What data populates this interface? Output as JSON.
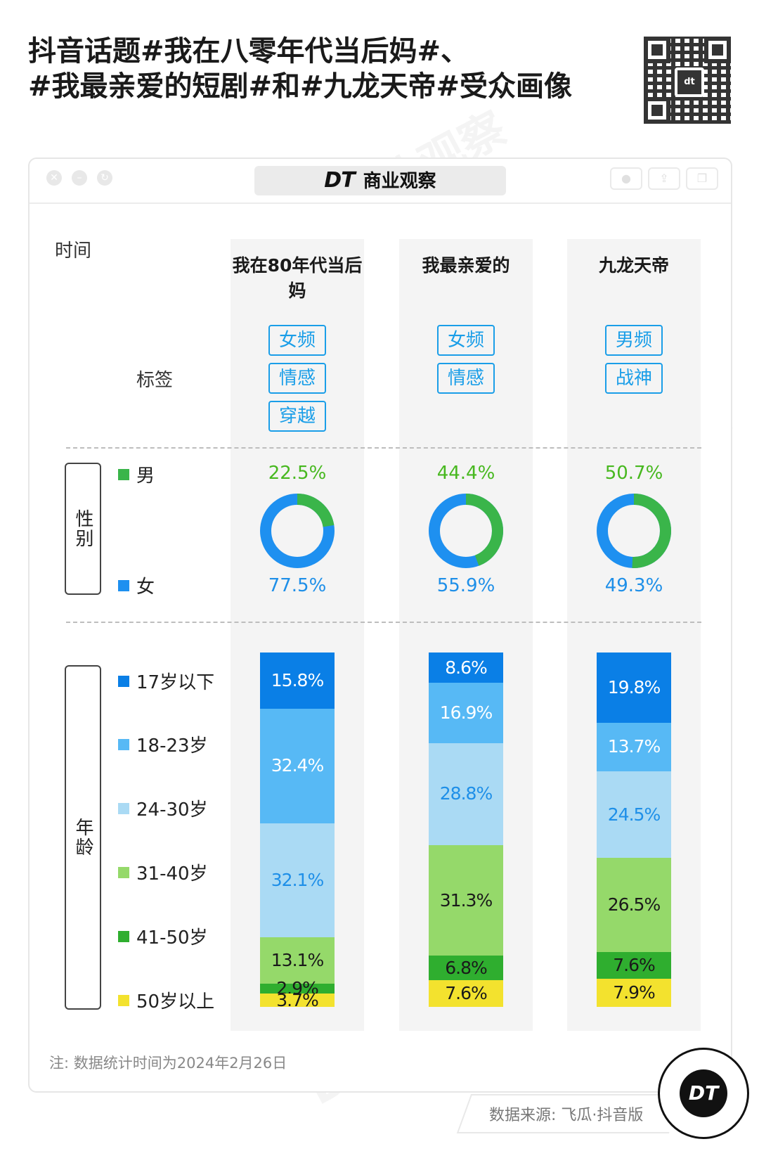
{
  "headline": {
    "line1": "抖音话题#我在八零年代当后妈#、",
    "line2": "#我最亲爱的短剧#和#九龙天帝#受众画像"
  },
  "window": {
    "brand": "DT",
    "title": "商业观察"
  },
  "labels": {
    "time": "时间",
    "tags": "标签",
    "gender": "性别",
    "age": "年龄"
  },
  "legend": {
    "gender": [
      {
        "name": "男",
        "color": "#3ab54a"
      },
      {
        "name": "女",
        "color": "#1e90f0"
      }
    ],
    "age": [
      {
        "name": "17岁以下",
        "color": "#0a7fe6"
      },
      {
        "name": "18-23岁",
        "color": "#57b9f5"
      },
      {
        "name": "24-30岁",
        "color": "#aadaf4"
      },
      {
        "name": "31-40岁",
        "color": "#95d96a"
      },
      {
        "name": "41-50岁",
        "color": "#2fae2f"
      },
      {
        "name": "50岁以上",
        "color": "#f3e22e"
      }
    ]
  },
  "colors": {
    "male": "#3ab54a",
    "female": "#1e90f0",
    "male_text": "#47b81f",
    "female_text": "#1e8fe8",
    "tag": "#1a9ee8"
  },
  "chart_data": {
    "type": "bar",
    "stacked": true,
    "categories": [
      "我在80年代当后妈",
      "我最亲爱的",
      "九龙天帝"
    ],
    "tags": [
      [
        "女频",
        "情感",
        "穿越"
      ],
      [
        "女频",
        "情感"
      ],
      [
        "男频",
        "战神"
      ]
    ],
    "gender": {
      "type": "pie",
      "series": [
        {
          "name": "男",
          "values": [
            22.5,
            44.4,
            50.7
          ],
          "labels": [
            "22.5%",
            "44.4%",
            "50.7%"
          ]
        },
        {
          "name": "女",
          "values": [
            77.5,
            55.9,
            49.3
          ],
          "labels": [
            "77.5%",
            "55.9%",
            "49.3%"
          ]
        }
      ]
    },
    "age": {
      "type": "bar",
      "series": [
        {
          "name": "17岁以下",
          "values": [
            15.8,
            8.6,
            19.8
          ],
          "labels": [
            "15.8%",
            "8.6%",
            "19.8%"
          ]
        },
        {
          "name": "18-23岁",
          "values": [
            32.4,
            16.9,
            13.7
          ],
          "labels": [
            "32.4%",
            "16.9%",
            "13.7%"
          ]
        },
        {
          "name": "24-30岁",
          "values": [
            32.1,
            28.8,
            24.5
          ],
          "labels": [
            "32.1%",
            "28.8%",
            "24.5%"
          ]
        },
        {
          "name": "31-40岁",
          "values": [
            13.1,
            31.3,
            26.5
          ],
          "labels": [
            "13.1%",
            "31.3%",
            "26.5%"
          ]
        },
        {
          "name": "41-50岁",
          "values": [
            2.9,
            6.8,
            7.6
          ],
          "labels": [
            "2.9%",
            "6.8%",
            "7.6%"
          ]
        },
        {
          "name": "50岁以上",
          "values": [
            3.7,
            7.6,
            7.9
          ],
          "labels": [
            "3.7%",
            "7.6%",
            "7.9%"
          ]
        }
      ],
      "label_colors": [
        "#ffffff",
        "#ffffff",
        "#1e8fe8",
        "#1a1a1a",
        "#1a1a1a",
        "#1a1a1a"
      ]
    }
  },
  "note": "注: 数据统计时间为2024年2月26日",
  "source": "数据来源: 飞瓜·抖音版",
  "badge": "DT"
}
